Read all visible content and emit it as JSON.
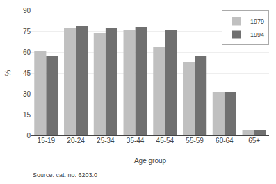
{
  "chart_data": {
    "type": "bar",
    "categories": [
      "15-19",
      "20-24",
      "25-34",
      "35-44",
      "45-54",
      "55-59",
      "60-64",
      "65+"
    ],
    "series": [
      {
        "name": "1979",
        "color": "#c0c0c0",
        "values": [
          61,
          77,
          74,
          76,
          64,
          53,
          31,
          4
        ]
      },
      {
        "name": "1994",
        "color": "#707070",
        "values": [
          57,
          79,
          77,
          78,
          76,
          57,
          31,
          4
        ]
      }
    ],
    "xlabel": "Age group",
    "ylabel": "%",
    "ylim": [
      0,
      90
    ],
    "yticks": [
      0,
      15,
      30,
      45,
      60,
      75,
      90
    ],
    "grid": true,
    "legend": "upper right",
    "source": "Source: cat. no. 6203.0"
  }
}
